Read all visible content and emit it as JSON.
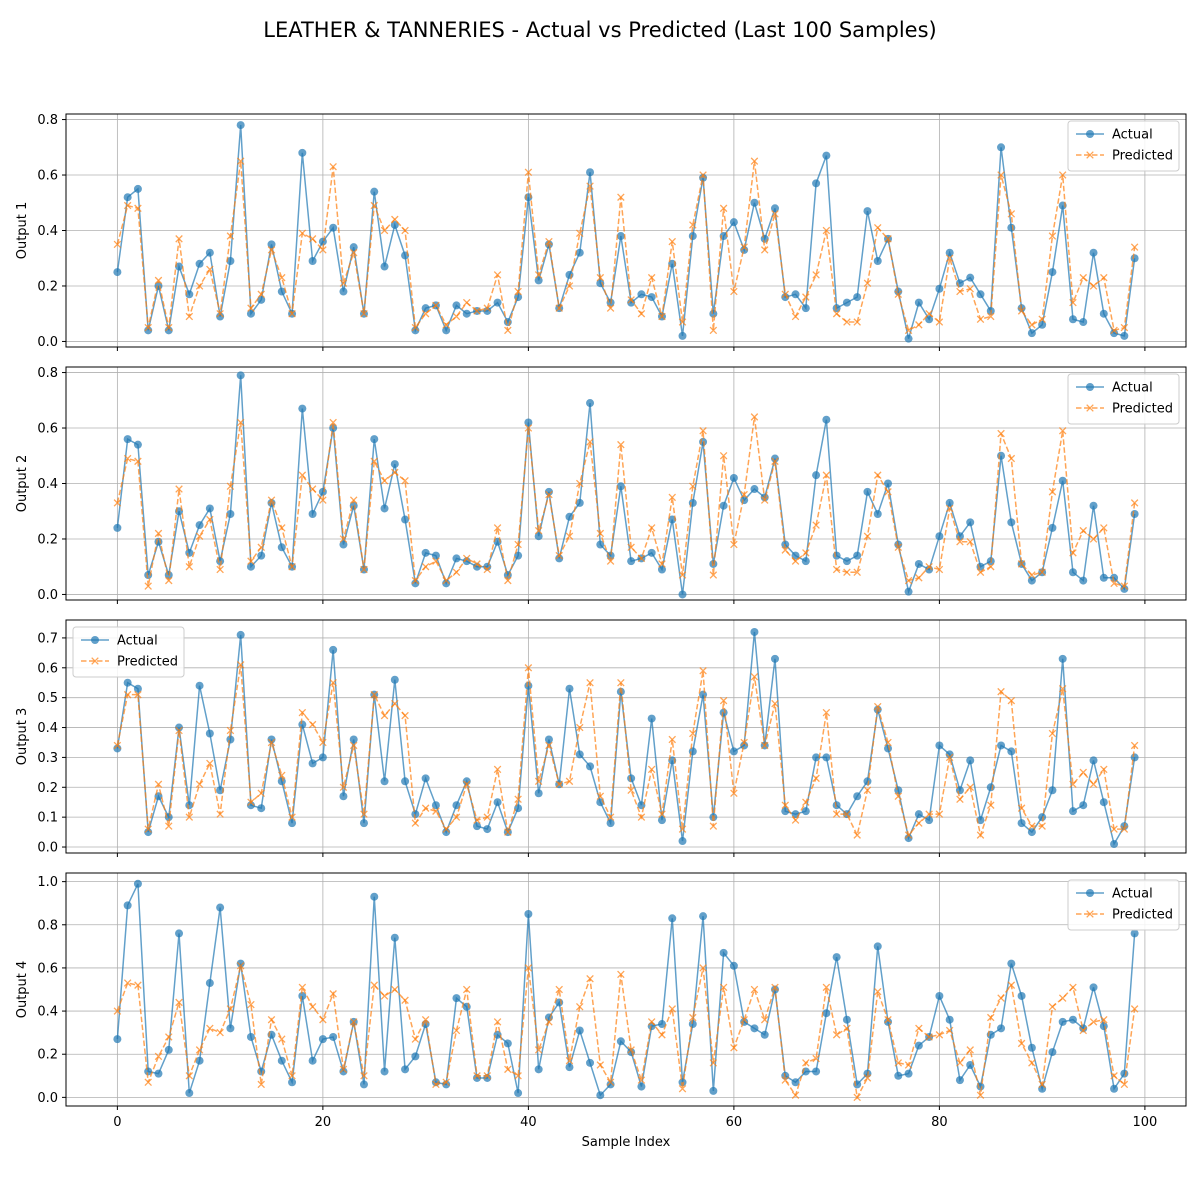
{
  "figure": {
    "title": "LEATHER & TANNERIES - Actual vs Predicted (Last 100 Samples)",
    "xlabel": "Sample Index"
  },
  "colors": {
    "actual": "#1f77b4",
    "predicted": "#ff7f0e",
    "grid": "#b0b0b0",
    "axis": "#000000"
  },
  "chart_data": [
    {
      "type": "line",
      "ylabel": "Output 1",
      "xlim": [
        -5,
        104
      ],
      "ylim": [
        -0.02,
        0.82
      ],
      "xticks": [
        0,
        20,
        40,
        60,
        80,
        100
      ],
      "yticks": [
        0.0,
        0.2,
        0.4,
        0.6,
        0.8
      ],
      "ytick_labels": [
        "0.0",
        "0.2",
        "0.4",
        "0.6",
        "0.8"
      ],
      "legend_position": "top-right",
      "series": [
        {
          "name": "Actual",
          "style": "solid-circle",
          "values": [
            0.25,
            0.52,
            0.55,
            0.04,
            0.2,
            0.04,
            0.27,
            0.17,
            0.28,
            0.32,
            0.09,
            0.29,
            0.78,
            0.1,
            0.15,
            0.35,
            0.18,
            0.1,
            0.68,
            0.29,
            0.36,
            0.41,
            0.18,
            0.34,
            0.1,
            0.54,
            0.27,
            0.42,
            0.31,
            0.04,
            0.12,
            0.13,
            0.04,
            0.13,
            0.1,
            0.11,
            0.11,
            0.14,
            0.07,
            0.16,
            0.52,
            0.22,
            0.35,
            0.12,
            0.24,
            0.32,
            0.61,
            0.21,
            0.14,
            0.38,
            0.14,
            0.17,
            0.16,
            0.09,
            0.28,
            0.02,
            0.38,
            0.59,
            0.1,
            0.38,
            0.43,
            0.33,
            0.5,
            0.37,
            0.48,
            0.16,
            0.17,
            0.12,
            0.57,
            0.67,
            0.12,
            0.14,
            0.16,
            0.47,
            0.29,
            0.37,
            0.18,
            0.01,
            0.14,
            0.08,
            0.19,
            0.32,
            0.21,
            0.23,
            0.17,
            0.11,
            0.7,
            0.41,
            0.12,
            0.03,
            0.06,
            0.25,
            0.49,
            0.08,
            0.07,
            0.32,
            0.1,
            0.03,
            0.02,
            0.3
          ]
        },
        {
          "name": "Predicted",
          "style": "dashed-x",
          "values": [
            0.35,
            0.49,
            0.48,
            0.05,
            0.22,
            0.05,
            0.37,
            0.09,
            0.2,
            0.26,
            0.1,
            0.38,
            0.65,
            0.12,
            0.17,
            0.33,
            0.23,
            0.1,
            0.39,
            0.37,
            0.33,
            0.63,
            0.21,
            0.32,
            0.1,
            0.49,
            0.4,
            0.44,
            0.4,
            0.05,
            0.1,
            0.13,
            0.06,
            0.09,
            0.14,
            0.11,
            0.12,
            0.24,
            0.04,
            0.18,
            0.61,
            0.24,
            0.36,
            0.12,
            0.2,
            0.39,
            0.56,
            0.23,
            0.12,
            0.52,
            0.15,
            0.1,
            0.23,
            0.09,
            0.36,
            0.07,
            0.42,
            0.6,
            0.04,
            0.48,
            0.18,
            0.34,
            0.65,
            0.33,
            0.46,
            0.17,
            0.09,
            0.16,
            0.24,
            0.4,
            0.1,
            0.07,
            0.07,
            0.21,
            0.41,
            0.37,
            0.17,
            0.04,
            0.06,
            0.1,
            0.07,
            0.3,
            0.18,
            0.19,
            0.08,
            0.09,
            0.6,
            0.46,
            0.11,
            0.06,
            0.08,
            0.38,
            0.6,
            0.14,
            0.23,
            0.2,
            0.23,
            0.04,
            0.05,
            0.34
          ]
        }
      ]
    },
    {
      "type": "line",
      "ylabel": "Output 2",
      "xlim": [
        -5,
        104
      ],
      "ylim": [
        -0.02,
        0.82
      ],
      "xticks": [
        0,
        20,
        40,
        60,
        80,
        100
      ],
      "yticks": [
        0.0,
        0.2,
        0.4,
        0.6,
        0.8
      ],
      "ytick_labels": [
        "0.0",
        "0.2",
        "0.4",
        "0.6",
        "0.8"
      ],
      "legend_position": "top-right",
      "series": [
        {
          "name": "Actual",
          "style": "solid-circle",
          "values": [
            0.24,
            0.56,
            0.54,
            0.07,
            0.19,
            0.07,
            0.3,
            0.15,
            0.25,
            0.31,
            0.12,
            0.29,
            0.79,
            0.1,
            0.14,
            0.33,
            0.17,
            0.1,
            0.67,
            0.29,
            0.37,
            0.6,
            0.18,
            0.32,
            0.09,
            0.56,
            0.31,
            0.47,
            0.27,
            0.04,
            0.15,
            0.14,
            0.04,
            0.13,
            0.12,
            0.1,
            0.1,
            0.19,
            0.07,
            0.14,
            0.62,
            0.21,
            0.37,
            0.13,
            0.28,
            0.33,
            0.69,
            0.18,
            0.14,
            0.39,
            0.12,
            0.13,
            0.15,
            0.09,
            0.27,
            0.0,
            0.33,
            0.55,
            0.11,
            0.32,
            0.42,
            0.34,
            0.38,
            0.35,
            0.49,
            0.18,
            0.14,
            0.12,
            0.43,
            0.63,
            0.14,
            0.12,
            0.14,
            0.37,
            0.29,
            0.4,
            0.18,
            0.01,
            0.11,
            0.09,
            0.21,
            0.33,
            0.21,
            0.26,
            0.1,
            0.12,
            0.5,
            0.26,
            0.11,
            0.05,
            0.08,
            0.24,
            0.41,
            0.08,
            0.05,
            0.32,
            0.06,
            0.06,
            0.02,
            0.29
          ]
        },
        {
          "name": "Predicted",
          "style": "dashed-x",
          "values": [
            0.33,
            0.49,
            0.48,
            0.03,
            0.22,
            0.05,
            0.38,
            0.1,
            0.21,
            0.27,
            0.09,
            0.39,
            0.62,
            0.12,
            0.17,
            0.34,
            0.24,
            0.1,
            0.43,
            0.38,
            0.34,
            0.62,
            0.2,
            0.34,
            0.09,
            0.48,
            0.41,
            0.44,
            0.41,
            0.05,
            0.1,
            0.12,
            0.05,
            0.08,
            0.13,
            0.11,
            0.09,
            0.24,
            0.05,
            0.18,
            0.6,
            0.23,
            0.36,
            0.14,
            0.21,
            0.4,
            0.55,
            0.22,
            0.12,
            0.54,
            0.17,
            0.13,
            0.24,
            0.11,
            0.35,
            0.07,
            0.39,
            0.59,
            0.07,
            0.5,
            0.18,
            0.36,
            0.64,
            0.34,
            0.48,
            0.16,
            0.12,
            0.15,
            0.25,
            0.43,
            0.09,
            0.08,
            0.08,
            0.21,
            0.43,
            0.37,
            0.17,
            0.05,
            0.06,
            0.1,
            0.09,
            0.31,
            0.19,
            0.19,
            0.08,
            0.1,
            0.58,
            0.49,
            0.11,
            0.07,
            0.08,
            0.37,
            0.59,
            0.15,
            0.23,
            0.2,
            0.24,
            0.04,
            0.03,
            0.33
          ]
        }
      ]
    },
    {
      "type": "line",
      "ylabel": "Output 3",
      "xlim": [
        -5,
        104
      ],
      "ylim": [
        -0.02,
        0.76
      ],
      "xticks": [
        0,
        20,
        40,
        60,
        80,
        100
      ],
      "yticks": [
        0.0,
        0.1,
        0.2,
        0.3,
        0.4,
        0.5,
        0.6,
        0.7
      ],
      "ytick_labels": [
        "0.0",
        "0.1",
        "0.2",
        "0.3",
        "0.4",
        "0.5",
        "0.6",
        "0.7"
      ],
      "legend_position": "top-left",
      "series": [
        {
          "name": "Actual",
          "style": "solid-circle",
          "values": [
            0.33,
            0.55,
            0.53,
            0.05,
            0.17,
            0.1,
            0.4,
            0.14,
            0.54,
            0.38,
            0.19,
            0.36,
            0.71,
            0.14,
            0.13,
            0.36,
            0.22,
            0.08,
            0.41,
            0.28,
            0.3,
            0.66,
            0.17,
            0.36,
            0.08,
            0.51,
            0.22,
            0.56,
            0.22,
            0.11,
            0.23,
            0.14,
            0.05,
            0.14,
            0.22,
            0.07,
            0.06,
            0.15,
            0.05,
            0.13,
            0.54,
            0.18,
            0.36,
            0.21,
            0.53,
            0.31,
            0.27,
            0.15,
            0.08,
            0.52,
            0.23,
            0.14,
            0.43,
            0.09,
            0.29,
            0.02,
            0.32,
            0.51,
            0.1,
            0.45,
            0.32,
            0.34,
            0.72,
            0.34,
            0.63,
            0.12,
            0.11,
            0.12,
            0.3,
            0.3,
            0.14,
            0.11,
            0.17,
            0.22,
            0.46,
            0.33,
            0.19,
            0.03,
            0.11,
            0.09,
            0.34,
            0.31,
            0.19,
            0.29,
            0.09,
            0.2,
            0.34,
            0.32,
            0.08,
            0.05,
            0.1,
            0.19,
            0.63,
            0.12,
            0.14,
            0.29,
            0.15,
            0.01,
            0.07,
            0.3
          ]
        },
        {
          "name": "Predicted",
          "style": "dashed-x",
          "values": [
            0.34,
            0.51,
            0.51,
            0.06,
            0.21,
            0.07,
            0.39,
            0.1,
            0.21,
            0.28,
            0.11,
            0.39,
            0.61,
            0.15,
            0.18,
            0.35,
            0.24,
            0.1,
            0.45,
            0.41,
            0.35,
            0.55,
            0.2,
            0.34,
            0.11,
            0.51,
            0.44,
            0.48,
            0.44,
            0.08,
            0.13,
            0.12,
            0.06,
            0.1,
            0.21,
            0.09,
            0.1,
            0.26,
            0.05,
            0.16,
            0.6,
            0.22,
            0.34,
            0.21,
            0.22,
            0.4,
            0.55,
            0.17,
            0.1,
            0.55,
            0.19,
            0.1,
            0.26,
            0.11,
            0.36,
            0.06,
            0.38,
            0.59,
            0.07,
            0.49,
            0.18,
            0.35,
            0.57,
            0.34,
            0.48,
            0.14,
            0.09,
            0.15,
            0.23,
            0.45,
            0.11,
            0.11,
            0.04,
            0.19,
            0.47,
            0.35,
            0.17,
            0.04,
            0.08,
            0.11,
            0.11,
            0.3,
            0.16,
            0.2,
            0.04,
            0.14,
            0.52,
            0.49,
            0.13,
            0.07,
            0.07,
            0.38,
            0.53,
            0.21,
            0.25,
            0.21,
            0.26,
            0.06,
            0.06,
            0.34
          ]
        }
      ]
    },
    {
      "type": "line",
      "ylabel": "Output 4",
      "xlim": [
        -5,
        104
      ],
      "ylim": [
        -0.04,
        1.04
      ],
      "xticks": [
        0,
        20,
        40,
        60,
        80,
        100
      ],
      "xtick_labels": [
        "0",
        "20",
        "40",
        "60",
        "80",
        "100"
      ],
      "yticks": [
        0.0,
        0.2,
        0.4,
        0.6,
        0.8,
        1.0
      ],
      "ytick_labels": [
        "0.0",
        "0.2",
        "0.4",
        "0.6",
        "0.8",
        "1.0"
      ],
      "legend_position": "top-right",
      "series": [
        {
          "name": "Actual",
          "style": "solid-circle",
          "values": [
            0.27,
            0.89,
            0.99,
            0.12,
            0.11,
            0.22,
            0.76,
            0.02,
            0.17,
            0.53,
            0.88,
            0.32,
            0.62,
            0.28,
            0.12,
            0.29,
            0.17,
            0.07,
            0.47,
            0.17,
            0.27,
            0.28,
            0.12,
            0.35,
            0.06,
            0.93,
            0.12,
            0.74,
            0.13,
            0.19,
            0.34,
            0.07,
            0.06,
            0.46,
            0.42,
            0.09,
            0.09,
            0.29,
            0.25,
            0.02,
            0.85,
            0.13,
            0.37,
            0.44,
            0.14,
            0.31,
            0.16,
            0.01,
            0.06,
            0.26,
            0.21,
            0.05,
            0.33,
            0.34,
            0.83,
            0.07,
            0.34,
            0.84,
            0.03,
            0.67,
            0.61,
            0.35,
            0.32,
            0.29,
            0.5,
            0.1,
            0.07,
            0.12,
            0.12,
            0.39,
            0.65,
            0.36,
            0.06,
            0.11,
            0.7,
            0.35,
            0.1,
            0.11,
            0.24,
            0.28,
            0.47,
            0.36,
            0.08,
            0.15,
            0.05,
            0.29,
            0.32,
            0.62,
            0.47,
            0.23,
            0.04,
            0.21,
            0.35,
            0.36,
            0.32,
            0.51,
            0.33,
            0.04,
            0.11,
            0.76
          ]
        },
        {
          "name": "Predicted",
          "style": "dashed-x",
          "values": [
            0.4,
            0.53,
            0.52,
            0.07,
            0.19,
            0.28,
            0.44,
            0.1,
            0.22,
            0.32,
            0.3,
            0.41,
            0.61,
            0.43,
            0.06,
            0.36,
            0.27,
            0.1,
            0.51,
            0.42,
            0.36,
            0.48,
            0.13,
            0.35,
            0.1,
            0.52,
            0.47,
            0.5,
            0.45,
            0.27,
            0.36,
            0.06,
            0.07,
            0.31,
            0.5,
            0.1,
            0.1,
            0.35,
            0.13,
            0.1,
            0.6,
            0.22,
            0.35,
            0.5,
            0.17,
            0.42,
            0.55,
            0.15,
            0.07,
            0.57,
            0.22,
            0.08,
            0.35,
            0.29,
            0.41,
            0.04,
            0.37,
            0.6,
            0.16,
            0.51,
            0.23,
            0.36,
            0.5,
            0.36,
            0.51,
            0.08,
            0.01,
            0.16,
            0.18,
            0.51,
            0.29,
            0.32,
            0.0,
            0.09,
            0.49,
            0.36,
            0.16,
            0.15,
            0.32,
            0.28,
            0.29,
            0.31,
            0.16,
            0.22,
            0.01,
            0.37,
            0.46,
            0.52,
            0.25,
            0.16,
            0.06,
            0.42,
            0.46,
            0.51,
            0.31,
            0.35,
            0.36,
            0.1,
            0.06,
            0.41
          ]
        }
      ]
    }
  ]
}
